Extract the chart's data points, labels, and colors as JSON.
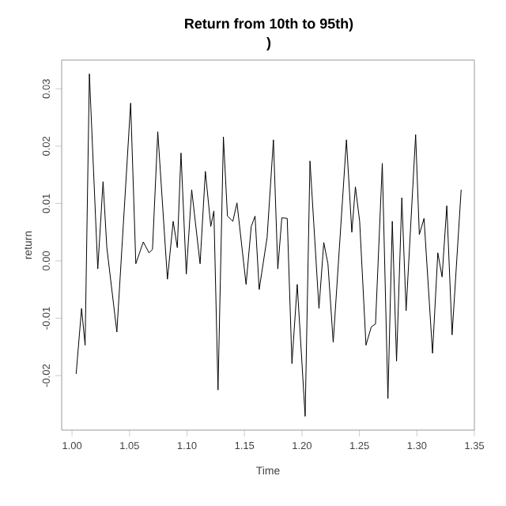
{
  "chart_data": {
    "type": "line",
    "title": "Return from 10th to 95th)",
    "subtitle": ")",
    "xlabel": "Time",
    "ylabel": "return",
    "x": [
      1.0036,
      1.0083,
      1.0114,
      1.0151,
      1.0224,
      1.027,
      1.0303,
      1.039,
      1.051,
      1.0555,
      1.062,
      1.067,
      1.07,
      1.0746,
      1.083,
      1.088,
      1.0916,
      1.0948,
      1.0994,
      1.1041,
      1.1114,
      1.116,
      1.1207,
      1.1234,
      1.127,
      1.1317,
      1.1352,
      1.1399,
      1.1435,
      1.1514,
      1.1559,
      1.1592,
      1.1628,
      1.1697,
      1.1752,
      1.179,
      1.1825,
      1.1872,
      1.1913,
      1.1959,
      1.2028,
      1.207,
      1.2148,
      1.219,
      1.2226,
      1.2272,
      1.2387,
      1.2434,
      1.2465,
      1.2502,
      1.2557,
      1.2603,
      1.264,
      1.2699,
      1.2748,
      1.2786,
      1.2823,
      1.2869,
      1.2906,
      1.2989,
      1.3021,
      1.3062,
      1.3136,
      1.3182,
      1.3219,
      1.326,
      1.3306,
      1.3385
    ],
    "series": [
      {
        "color": "#000000",
        "values": [
          -0.0197,
          -0.0083,
          -0.0147,
          0.0326,
          -0.0014,
          0.0138,
          0.0023,
          -0.0124,
          0.0275,
          -0.0005,
          0.0033,
          0.0014,
          0.002,
          0.0225,
          -0.0032,
          0.0069,
          0.0023,
          0.0188,
          -0.0023,
          0.0124,
          -0.0005,
          0.0156,
          0.006,
          0.0087,
          -0.0225,
          0.0216,
          0.0078,
          0.0069,
          0.0101,
          -0.0041,
          0.006,
          0.0078,
          -0.005,
          0.0041,
          0.0211,
          -0.0014,
          0.0075,
          0.0074,
          -0.0179,
          -0.0041,
          -0.0271,
          0.0174,
          -0.0083,
          0.0032,
          -0.0005,
          -0.0142,
          0.0211,
          0.005,
          0.0129,
          0.0069,
          -0.0147,
          -0.0115,
          -0.011,
          0.017,
          -0.024,
          0.0069,
          -0.0175,
          0.011,
          -0.0087,
          0.022,
          0.0046,
          0.0074,
          -0.0161,
          0.0014,
          -0.0028,
          0.0096,
          -0.0129,
          0.0124
        ]
      }
    ],
    "xlim": [
      0.991,
      1.35
    ],
    "ylim": [
      -0.0295,
      0.035
    ],
    "xticks": [
      {
        "value": 1.0,
        "label": "1.00"
      },
      1.05,
      {
        "value": 1.1,
        "label": "1.10"
      },
      1.15,
      {
        "value": 1.2,
        "label": "1.20"
      },
      1.25,
      {
        "value": 1.3,
        "label": "1.30"
      },
      1.35
    ],
    "yticks": [
      -0.02,
      -0.01,
      {
        "value": 0,
        "label": "0.00"
      },
      0.01,
      0.02,
      0.03
    ],
    "grid": false,
    "marker": "none",
    "line_style": "solid"
  }
}
